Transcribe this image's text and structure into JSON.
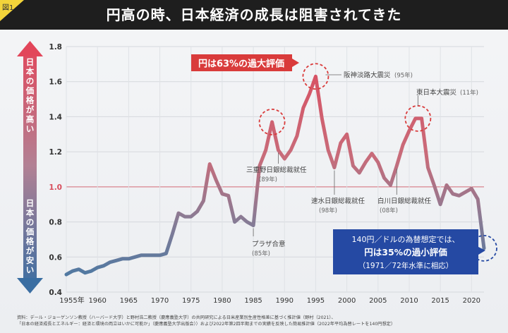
{
  "figure_label": "図1",
  "title": "円高の時、日本経済の成長は阻害されてきた",
  "source_lines": [
    "資料：デール・ジョーゲンソン教授（ハーバード大学）と野村浩二教授（慶應義塾大学）の共同研究による日米産業別生産性格差に基づく推計値（野村（2021）、",
    "「日本の経済成長とエネルギー：経済と環境の両立はいかに可能か」（慶應義塾大学出版会））および2022年第2四半期までの実績を反映した簡易推計値（2022年平均為替レートを140円想定）"
  ],
  "side_labels": {
    "top": "日本の価格が高い",
    "bottom": "日本の価格が安い"
  },
  "callouts": {
    "over": "円は63%の過大評価",
    "under_line1": "140円／ドルの為替想定では、",
    "under_line2": "円は35%の過小評価",
    "under_line3": "（1971／72年水準に相応）"
  },
  "annotations": [
    {
      "text": "阪神淡路大震災",
      "sub": "(95年)"
    },
    {
      "text": "東日本大震災",
      "sub": "(11年)"
    },
    {
      "text": "三重野日銀総裁就任",
      "sub": "(89年)"
    },
    {
      "text": "速水日銀総裁就任",
      "sub": "(98年)"
    },
    {
      "text": "白川日銀総裁就任",
      "sub": "(08年)"
    },
    {
      "text": "プラザ合意",
      "sub": "(85年)"
    }
  ],
  "colors": {
    "high": "#d9485c",
    "low": "#3d6f9c",
    "callout_red": "#d93b3b",
    "callout_blue": "#2549a3",
    "header": "#1e1e1e"
  },
  "chart_data": {
    "type": "line",
    "ylim": [
      0.4,
      1.8
    ],
    "xlim": [
      1955,
      2022
    ],
    "yticks": [
      0.4,
      0.6,
      0.8,
      1.0,
      1.2,
      1.4,
      1.6,
      1.8
    ],
    "ytick_labels": [
      "0.4",
      "0.6",
      "0.8",
      "1.0",
      "1.2",
      "1.4",
      "1.6",
      "1.8"
    ],
    "xticks": [
      1955,
      1960,
      1965,
      1970,
      1975,
      1980,
      1985,
      1990,
      1995,
      2000,
      2005,
      2010,
      2015,
      2020
    ],
    "xtick_labels": [
      "1955年",
      "1960",
      "1965",
      "1970",
      "1975",
      "1980",
      "1985",
      "1990",
      "1995",
      "2000",
      "2005",
      "2010",
      "2015",
      "2020"
    ],
    "grid": true,
    "x": [
      1955,
      1956,
      1957,
      1958,
      1959,
      1960,
      1961,
      1962,
      1963,
      1964,
      1965,
      1966,
      1967,
      1968,
      1969,
      1970,
      1971,
      1972,
      1973,
      1974,
      1975,
      1976,
      1977,
      1978,
      1979,
      1980,
      1981,
      1982,
      1983,
      1984,
      1985,
      1986,
      1987,
      1988,
      1989,
      1990,
      1991,
      1992,
      1993,
      1994,
      1995,
      1996,
      1997,
      1998,
      1999,
      2000,
      2001,
      2002,
      2003,
      2004,
      2005,
      2006,
      2007,
      2008,
      2009,
      2010,
      2011,
      2012,
      2013,
      2014,
      2015,
      2016,
      2017,
      2018,
      2019,
      2020,
      2021,
      2022
    ],
    "y": [
      0.5,
      0.52,
      0.53,
      0.51,
      0.52,
      0.54,
      0.55,
      0.57,
      0.58,
      0.59,
      0.59,
      0.6,
      0.61,
      0.61,
      0.61,
      0.61,
      0.62,
      0.73,
      0.85,
      0.83,
      0.83,
      0.86,
      0.92,
      1.13,
      1.04,
      0.96,
      0.95,
      0.8,
      0.83,
      0.8,
      0.78,
      1.12,
      1.21,
      1.37,
      1.21,
      1.16,
      1.21,
      1.29,
      1.45,
      1.53,
      1.63,
      1.39,
      1.21,
      1.11,
      1.25,
      1.3,
      1.12,
      1.08,
      1.14,
      1.19,
      1.14,
      1.05,
      1.01,
      1.12,
      1.24,
      1.32,
      1.39,
      1.39,
      1.11,
      1.01,
      0.9,
      1.01,
      0.96,
      0.95,
      0.97,
      0.99,
      0.93,
      0.65
    ]
  }
}
